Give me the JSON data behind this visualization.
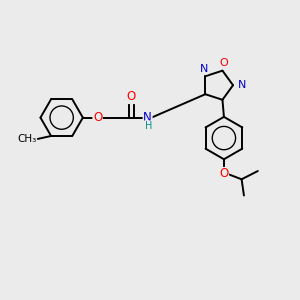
{
  "background_color": "#ebebeb",
  "bond_color": "#000000",
  "bond_width": 1.4,
  "atom_colors": {
    "O": "#ff0000",
    "N": "#0000cc",
    "C": "#000000",
    "H": "#009090"
  },
  "font_size": 8.5
}
